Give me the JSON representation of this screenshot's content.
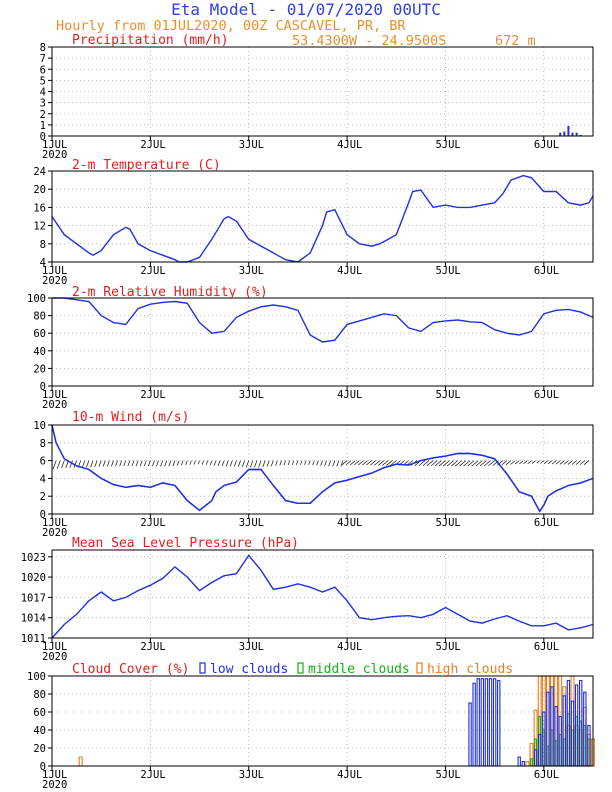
{
  "header": {
    "title": "Eta Model - 01/07/2020 00UTC",
    "subtitle": "Hourly from 01JUL2020, 00Z  CASCAVEL, PR, BR",
    "coords": "53.4300W - 24.9500S",
    "elevation": "672  m"
  },
  "colors": {
    "title": "#3040e0",
    "subtitle": "#e89030",
    "panel_title": "#e02020",
    "line": "#2030e0",
    "low": "#2030e0",
    "mid": "#10b010",
    "high": "#e88020",
    "grid": "#aaaaaa"
  },
  "x_axis": {
    "day_labels": [
      "1JUL",
      "2JUL",
      "3JUL",
      "4JUL",
      "5JUL",
      "6JUL"
    ],
    "year_label": "2020",
    "range_hours": [
      0,
      132
    ]
  },
  "chart_data": [
    {
      "id": "precip",
      "type": "bar",
      "title": "Precipitation (mm/h)",
      "ylim": [
        0,
        8
      ],
      "yticks": [
        "0",
        "1",
        "2",
        "3",
        "4",
        "5",
        "6",
        "7",
        "8"
      ],
      "hours": [
        124,
        125,
        126,
        127,
        128,
        129
      ],
      "values": [
        0.3,
        0.4,
        0.9,
        0.3,
        0.3,
        0.1
      ]
    },
    {
      "id": "temp",
      "type": "line",
      "title": "2-m Temperature (C)",
      "ylim": [
        4,
        24
      ],
      "yticks": [
        "4",
        "8",
        "12",
        "16",
        "20",
        "24"
      ],
      "hours": [
        0,
        3,
        6,
        9,
        10,
        12,
        15,
        18,
        19,
        21,
        24,
        27,
        30,
        31,
        33,
        36,
        39,
        42,
        43,
        45,
        48,
        51,
        54,
        55,
        57,
        60,
        63,
        66,
        67,
        69,
        72,
        75,
        78,
        80,
        84,
        87,
        88,
        90,
        93,
        96,
        99,
        102,
        105,
        108,
        110,
        112,
        115,
        117,
        120,
        123,
        126,
        129,
        131,
        132
      ],
      "values": [
        14,
        10,
        8,
        6,
        5.5,
        6.5,
        10,
        11.6,
        11.2,
        8,
        6.5,
        5.5,
        4.5,
        4,
        4,
        5,
        9,
        13.5,
        14,
        13,
        9,
        7.5,
        6,
        5.5,
        4.5,
        4,
        6,
        12,
        15,
        15.5,
        10,
        8,
        7.5,
        8,
        10,
        17,
        19.5,
        19.8,
        16,
        16.5,
        16,
        16,
        16.5,
        17,
        19,
        22,
        23,
        22.5,
        19.5,
        19.5,
        17,
        16.5,
        17,
        18.5
      ]
    },
    {
      "id": "rh",
      "type": "line",
      "title": "2-m Relative Humidity (%)",
      "ylim": [
        0,
        100
      ],
      "yticks": [
        "0",
        "20",
        "40",
        "60",
        "80",
        "100"
      ],
      "hours": [
        0,
        3,
        6,
        9,
        12,
        15,
        18,
        21,
        24,
        27,
        30,
        33,
        36,
        39,
        42,
        45,
        48,
        51,
        54,
        57,
        60,
        63,
        66,
        69,
        72,
        75,
        78,
        81,
        84,
        87,
        90,
        93,
        96,
        99,
        102,
        105,
        108,
        111,
        114,
        117,
        120,
        123,
        126,
        129,
        132
      ],
      "values": [
        100,
        100,
        98,
        96,
        80,
        72,
        70,
        88,
        93,
        95,
        96,
        94,
        72,
        60,
        62,
        78,
        85,
        90,
        92,
        90,
        86,
        58,
        50,
        52,
        70,
        74,
        78,
        82,
        80,
        66,
        62,
        72,
        74,
        75,
        73,
        72,
        64,
        60,
        58,
        62,
        82,
        86,
        87,
        84,
        78
      ]
    },
    {
      "id": "wind",
      "type": "line",
      "title": "10-m Wind (m/s)",
      "ylim": [
        0,
        10
      ],
      "yticks": [
        "0",
        "2",
        "4",
        "6",
        "8",
        "10"
      ],
      "hours": [
        0,
        1,
        3,
        6,
        9,
        12,
        15,
        18,
        21,
        24,
        27,
        30,
        33,
        36,
        39,
        40,
        42,
        45,
        48,
        51,
        54,
        57,
        60,
        63,
        66,
        69,
        72,
        75,
        78,
        81,
        84,
        87,
        90,
        93,
        96,
        99,
        102,
        105,
        108,
        111,
        114,
        117,
        119,
        120,
        121,
        123,
        126,
        129,
        132
      ],
      "values": [
        10,
        8,
        6.2,
        5.4,
        5,
        4,
        3.3,
        3,
        3.2,
        3,
        3.5,
        3.2,
        1.5,
        0.4,
        1.5,
        2.5,
        3.2,
        3.6,
        5,
        5,
        3.2,
        1.5,
        1.2,
        1.2,
        2.5,
        3.5,
        3.8,
        4.2,
        4.6,
        5.2,
        5.6,
        5.5,
        6,
        6.3,
        6.5,
        6.8,
        6.8,
        6.6,
        6.2,
        4.5,
        2.5,
        2,
        0.3,
        1,
        2,
        2.6,
        3.2,
        3.5,
        4
      ]
    },
    {
      "id": "mslp",
      "type": "line",
      "title": "Mean Sea Level Pressure (hPa)",
      "ylim": [
        1011,
        1024
      ],
      "yticks": [
        "1011",
        "1014",
        "1017",
        "1020",
        "1023"
      ],
      "hours": [
        0,
        3,
        6,
        9,
        12,
        15,
        18,
        21,
        24,
        27,
        30,
        33,
        36,
        39,
        42,
        45,
        48,
        51,
        54,
        57,
        60,
        63,
        66,
        69,
        72,
        75,
        78,
        81,
        84,
        87,
        90,
        93,
        96,
        99,
        102,
        105,
        108,
        111,
        114,
        117,
        120,
        123,
        126,
        129,
        132
      ],
      "values": [
        1011,
        1013,
        1014.5,
        1016.5,
        1017.8,
        1016.5,
        1017,
        1018,
        1018.8,
        1019.8,
        1021.5,
        1020,
        1018,
        1019.2,
        1020.2,
        1020.5,
        1023.2,
        1021,
        1018.2,
        1018.5,
        1019,
        1018.5,
        1017.8,
        1018.5,
        1016.5,
        1014,
        1013.7,
        1014,
        1014.2,
        1014.3,
        1014,
        1014.5,
        1015.5,
        1014.5,
        1013.5,
        1013.2,
        1013.8,
        1014.3,
        1013.5,
        1012.8,
        1012.8,
        1013.2,
        1012.2,
        1012.5,
        1013
      ]
    },
    {
      "id": "cloud",
      "type": "bar",
      "title": "Cloud Cover (%)",
      "legend": [
        "low clouds",
        "middle clouds",
        "high clouds"
      ],
      "ylim": [
        0,
        100
      ],
      "yticks": [
        "0",
        "20",
        "40",
        "60",
        "80",
        "100"
      ],
      "low": {
        "hours": [
          102,
          103,
          104,
          105,
          106,
          107,
          108,
          109,
          114,
          115,
          118,
          119,
          120,
          121,
          122,
          123,
          124,
          125,
          126,
          127,
          128,
          129,
          130,
          131
        ],
        "values": [
          70,
          92,
          97,
          97,
          97,
          97,
          97,
          95,
          10,
          5,
          18,
          35,
          60,
          82,
          88,
          66,
          55,
          78,
          95,
          72,
          90,
          95,
          82,
          45
        ]
      },
      "mid": {
        "hours": [
          117,
          118,
          119,
          120,
          121,
          122,
          123,
          124,
          125,
          126,
          127,
          128,
          129,
          130,
          131
        ],
        "values": [
          8,
          30,
          55,
          40,
          22,
          40,
          28,
          35,
          30,
          58,
          40,
          55,
          50,
          45,
          30
        ]
      },
      "high": {
        "hours": [
          7,
          116,
          117,
          118,
          119,
          120,
          121,
          122,
          123,
          124,
          125,
          126,
          127,
          128,
          129,
          130,
          131,
          132
        ],
        "values": [
          10,
          5,
          25,
          62,
          100,
          100,
          100,
          100,
          100,
          100,
          88,
          45,
          100,
          45,
          40,
          65,
          35,
          30
        ]
      }
    }
  ]
}
